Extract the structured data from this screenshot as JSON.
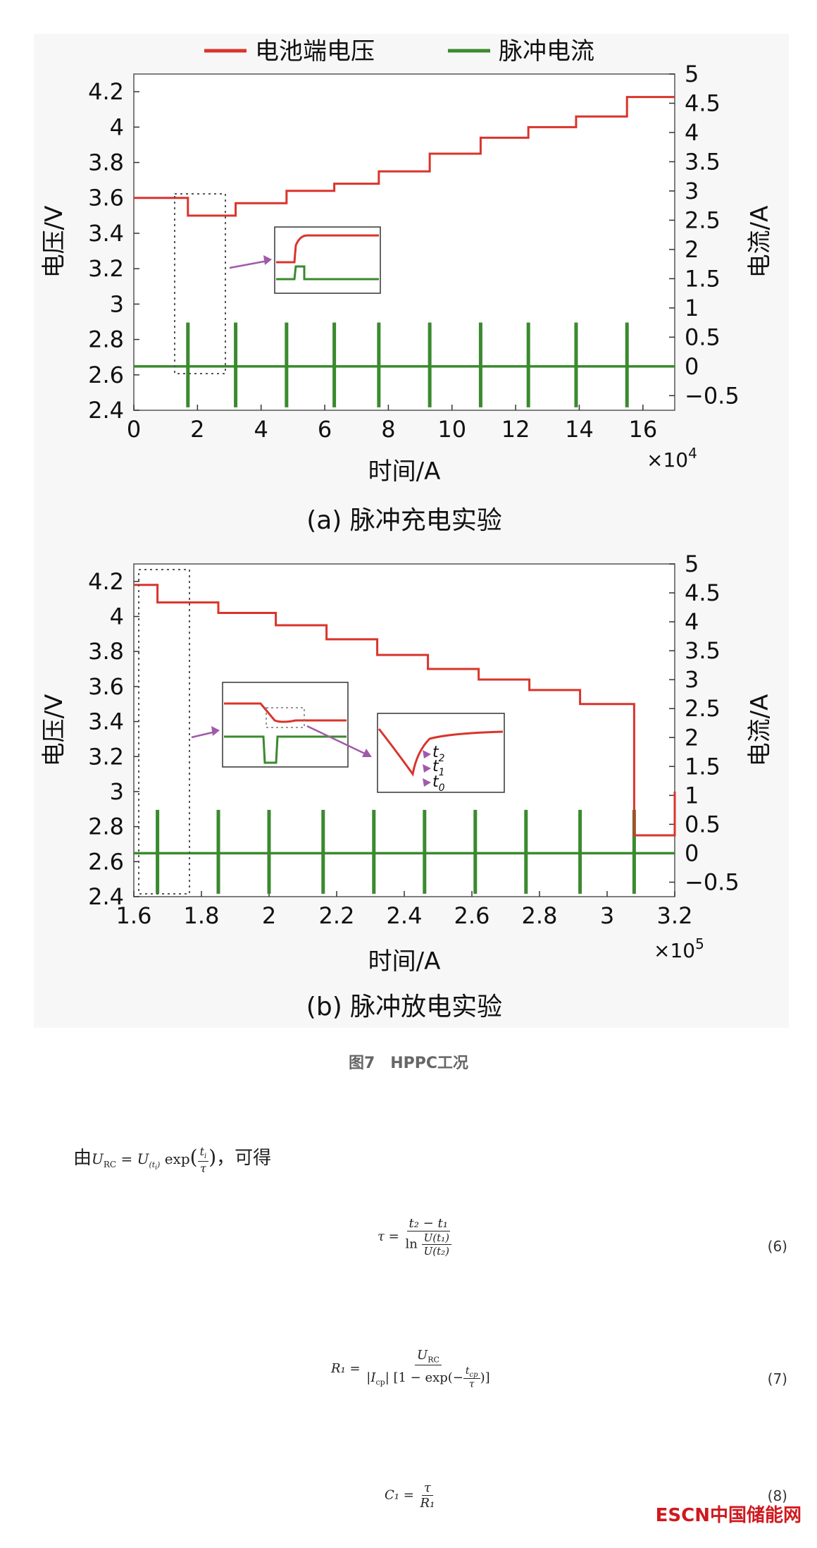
{
  "legend": {
    "voltage": "电池端电压",
    "current": "脉冲电流"
  },
  "colors": {
    "voltage": "#d9342b",
    "current": "#3a8a2e",
    "inset_arrow": "#a05aa8",
    "box_black": "#555555",
    "box_red": "#d35b5b"
  },
  "chart_data": [
    {
      "type": "line",
      "subtitle": "(a) 脉冲充电实验",
      "xlabel": "时间/A",
      "ylabel": "电压/V",
      "ylabel_right": "电流/A",
      "x_multiplier": "×10",
      "x_multiplier_exp": "4",
      "xlim": [
        0,
        17
      ],
      "ylim": [
        2.4,
        4.3
      ],
      "ylim_right": [
        -0.75,
        5
      ],
      "xticks": [
        0,
        2,
        4,
        6,
        8,
        10,
        12,
        14,
        16
      ],
      "yticks": [
        2.4,
        2.6,
        2.8,
        3,
        3.2,
        3.4,
        3.6,
        3.8,
        4,
        4.2
      ],
      "yticks_right": [
        -0.5,
        0,
        0.5,
        1,
        1.5,
        2,
        2.5,
        3,
        3.5,
        4,
        4.5,
        5
      ],
      "series": [
        {
          "name": "电池端电压",
          "steps": [
            [
              0,
              3.6
            ],
            [
              1.7,
              3.5
            ],
            [
              3.2,
              3.57
            ],
            [
              4.8,
              3.64
            ],
            [
              6.3,
              3.68
            ],
            [
              7.7,
              3.75
            ],
            [
              9.3,
              3.85
            ],
            [
              10.9,
              3.94
            ],
            [
              12.4,
              4.0
            ],
            [
              13.9,
              4.06
            ],
            [
              15.5,
              4.17
            ]
          ]
        },
        {
          "name": "脉冲电流",
          "baseline": 0,
          "pulse_high": 0.75,
          "pulse_low": -0.7,
          "pulse_x": [
            1.7,
            3.2,
            4.8,
            6.3,
            7.7,
            9.3,
            10.9,
            12.4,
            13.9,
            15.5
          ]
        }
      ]
    },
    {
      "type": "line",
      "subtitle": "(b) 脉冲放电实验",
      "xlabel": "时间/A",
      "ylabel": "电压/V",
      "ylabel_right": "电流/A",
      "x_multiplier": "×10",
      "x_multiplier_exp": "5",
      "xlim": [
        1.6,
        3.2
      ],
      "ylim": [
        2.4,
        4.3
      ],
      "ylim_right": [
        -0.75,
        5
      ],
      "xticks": [
        1.6,
        1.8,
        2,
        2.2,
        2.4,
        2.6,
        2.8,
        3,
        3.2
      ],
      "yticks": [
        2.4,
        2.6,
        2.8,
        3,
        3.2,
        3.4,
        3.6,
        3.8,
        4,
        4.2
      ],
      "yticks_right": [
        -0.5,
        0,
        0.5,
        1,
        1.5,
        2,
        2.5,
        3,
        3.5,
        4,
        4.5,
        5
      ],
      "series": [
        {
          "name": "电池端电压",
          "steps": [
            [
              1.6,
              4.18
            ],
            [
              1.67,
              4.08
            ],
            [
              1.85,
              4.02
            ],
            [
              2.02,
              3.95
            ],
            [
              2.17,
              3.87
            ],
            [
              2.32,
              3.78
            ],
            [
              2.47,
              3.7
            ],
            [
              2.62,
              3.64
            ],
            [
              2.77,
              3.58
            ],
            [
              2.92,
              3.5
            ],
            [
              3.08,
              2.75
            ],
            [
              3.2,
              3.0
            ]
          ]
        },
        {
          "name": "脉冲电流",
          "baseline": 0,
          "pulse_high": 0.75,
          "pulse_low": -0.7,
          "pulse_x": [
            1.67,
            1.85,
            2.0,
            2.16,
            2.31,
            2.46,
            2.61,
            2.76,
            2.92,
            3.08
          ]
        }
      ]
    }
  ],
  "inset_labels": {
    "t2": "t",
    "t2_sub": "2",
    "t1": "t",
    "t1_sub": "1",
    "t0": "t",
    "t0_sub": "0"
  },
  "caption": "图7　HPPC工况",
  "text": {
    "intro_prefix": "由",
    "intro_suffix": "，可得",
    "formula_urc": "U",
    "formula_urc_sub": "RC",
    "formula_eq": " = ",
    "formula_u": "U",
    "formula_u_sub": "(t",
    "formula_u_subsub": "i",
    "formula_u_close": ")",
    "formula_exp": " exp",
    "formula_ti": "t",
    "formula_ti_sub": "i",
    "formula_tau": "τ"
  },
  "equations": {
    "eq6": {
      "lhs": "τ = ",
      "num": "t₂ − t₁",
      "den_prefix": "ln",
      "den_num": "U(t₁)",
      "den_den": "U(t₂)",
      "number": "(6)"
    },
    "eq7": {
      "lhs": "R₁ = ",
      "num": "U",
      "num_sub": "RC",
      "den": "|I",
      "den_sub": "cp",
      "den_rest": "| [1 − exp(−",
      "den_frac_num": "t",
      "den_frac_num_sub": "cp",
      "den_frac_den": "τ",
      "den_close": ")]",
      "number": "(7)"
    },
    "eq8": {
      "lhs": "C₁ = ",
      "num": "τ",
      "den": "R₁",
      "number": "(8)"
    }
  },
  "watermark": "ESCN中国储能网"
}
